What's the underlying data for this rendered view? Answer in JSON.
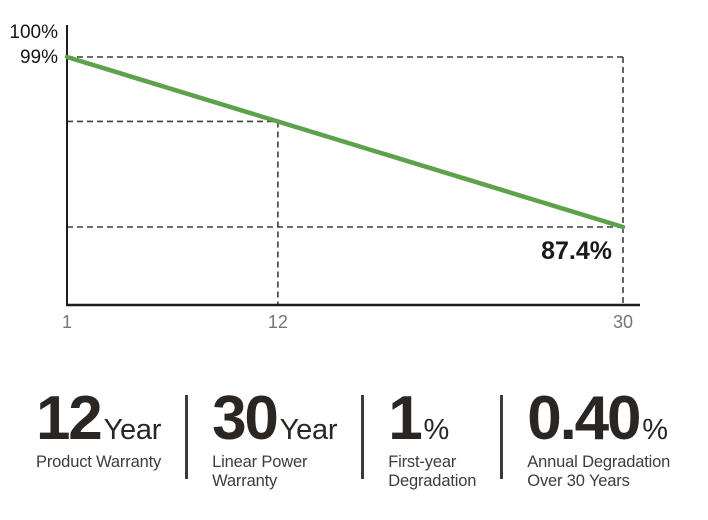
{
  "chart": {
    "y_ticks": [
      {
        "text": "100%",
        "value": 100
      },
      {
        "text": "99%",
        "value": 99
      }
    ],
    "x_ticks": [
      {
        "text": "1",
        "value": 1
      },
      {
        "text": "12",
        "value": 12
      },
      {
        "text": "30",
        "value": 30
      }
    ],
    "end_label": {
      "text": "87.4%"
    },
    "colors": {
      "line": "#5ca24b",
      "axis": "#1d1d1b",
      "dashed": "#3f3f3f",
      "tick_text": "#757575",
      "y_label_text": "#151515",
      "end_label_text": "#1a1a1a"
    }
  },
  "chart_data": {
    "type": "line",
    "title": "",
    "xlabel": "",
    "ylabel": "",
    "x": [
      1,
      30
    ],
    "series": [
      {
        "name": "linear-power-warranty-output",
        "values": [
          99,
          87.4
        ]
      }
    ],
    "reference_points": [
      {
        "x": 12,
        "y": 94.6
      },
      {
        "x": 30,
        "y": 87.4,
        "label": "87.4%"
      }
    ],
    "xlim": [
      1,
      30
    ],
    "x_tick_labels": [
      "1",
      "12",
      "30"
    ],
    "y_tick_labels": [
      "100%",
      "99%"
    ],
    "annotations": [
      "87.4%"
    ],
    "grid": "dashed-reference-lines",
    "legend": "none"
  },
  "stats": [
    {
      "value": "12",
      "unit": "Year",
      "label_lines": [
        "Product Warranty"
      ]
    },
    {
      "value": "30",
      "unit": "Year",
      "label_lines": [
        "Linear Power",
        "Warranty"
      ]
    },
    {
      "value": "1",
      "unit": "%",
      "label_lines": [
        "First-year",
        "Degradation"
      ]
    },
    {
      "value": "0.40",
      "unit": "%",
      "label_lines": [
        "Annual Degradation",
        "Over 30 Years"
      ]
    }
  ],
  "colors": {
    "background": "#ffffff",
    "stat_text": "#2b2622",
    "divider": "#3a3a3a",
    "label_text": "#3c3c3c"
  }
}
